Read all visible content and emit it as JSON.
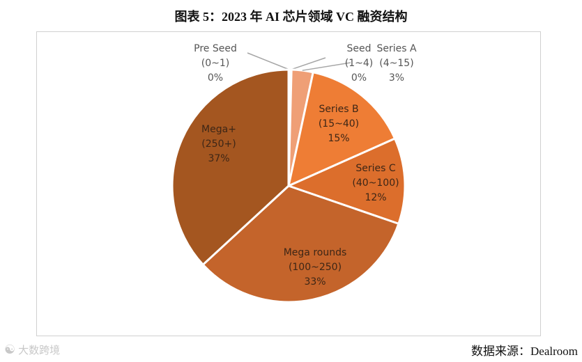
{
  "figure": {
    "title": "图表 5：2023 年 AI 芯片领域 VC 融资结构",
    "source": "数据来源：Dealroom",
    "watermark": "大数跨境"
  },
  "chart_data": {
    "type": "pie",
    "title": "图表 5：2023 年 AI 芯片领域 VC 融资结构",
    "start": "12 o'clock, clockwise",
    "slices": [
      {
        "name": "Pre Seed",
        "range": "(0~1)",
        "value": 0.2,
        "label": "0%",
        "color": "#f6cdb3"
      },
      {
        "name": "Seed",
        "range": "(1~4)",
        "value": 0.2,
        "label": "0%",
        "color": "#f0b48f"
      },
      {
        "name": "Series A",
        "range": "(4~15)",
        "value": 3,
        "label": "3%",
        "color": "#ef9f76"
      },
      {
        "name": "Series B",
        "range": "(15~40)",
        "value": 15,
        "label": "15%",
        "color": "#ee7d35"
      },
      {
        "name": "Series C",
        "range": "(40~100)",
        "value": 12,
        "label": "12%",
        "color": "#dc6e2c"
      },
      {
        "name": "Mega rounds",
        "range": "(100~250)",
        "value": 33,
        "label": "33%",
        "color": "#c4642b"
      },
      {
        "name": "Mega+",
        "range": "(250+)",
        "value": 37,
        "label": "37%",
        "color": "#a45620"
      }
    ],
    "label_color": "#555555",
    "inner_label_color": "#3d2616"
  }
}
